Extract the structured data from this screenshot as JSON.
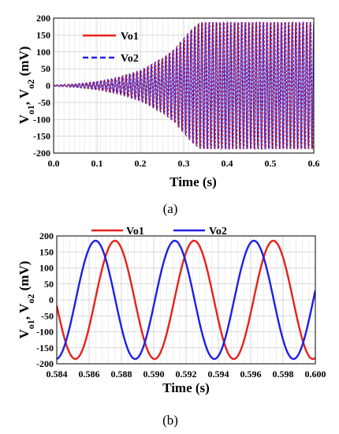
{
  "chart_data": [
    {
      "type": "line",
      "panel_label": "(a)",
      "xlabel": "Time (s)",
      "ylabel": "V",
      "ylabel_sub1": "o1",
      "ylabel_sep": ", V",
      "ylabel_sub2": "o2",
      "ylabel_unit": " (mV)",
      "xlim": [
        0.0,
        0.6
      ],
      "ylim": [
        -200,
        200
      ],
      "xticks": [
        0.0,
        0.1,
        0.2,
        0.3,
        0.4,
        0.5,
        0.6
      ],
      "xtick_labels": [
        "0.0",
        "0.1",
        "0.2",
        "0.3",
        "0.4",
        "0.5",
        "0.6"
      ],
      "yticks": [
        -200,
        -150,
        -100,
        -50,
        0,
        50,
        100,
        150,
        200
      ],
      "ytick_labels": [
        "-200",
        "-150",
        "-100",
        "-50",
        "0",
        "50",
        "100",
        "150",
        "200"
      ],
      "grid": true,
      "legend_placement": "top-left",
      "envelope": {
        "x": [
          0.0,
          0.05,
          0.1,
          0.15,
          0.2,
          0.25,
          0.28,
          0.3,
          0.32,
          0.335,
          0.34,
          0.6
        ],
        "amplitude": [
          2,
          5,
          12,
          25,
          45,
          80,
          110,
          140,
          170,
          185,
          188,
          188
        ]
      },
      "oscillation_period_s": 0.00833,
      "series": [
        {
          "name": "Vo1",
          "color": "#e8211b",
          "style": "solid"
        },
        {
          "name": "Vo2",
          "color": "#1f1fe8",
          "style": "dashed"
        }
      ]
    },
    {
      "type": "line",
      "panel_label": "(b)",
      "xlabel": "Time (s)",
      "ylabel": "V",
      "ylabel_sub1": "o1",
      "ylabel_sep": ", V",
      "ylabel_sub2": "o2",
      "ylabel_unit": " (mV)",
      "xlim": [
        0.584,
        0.6
      ],
      "ylim": [
        -200,
        200
      ],
      "xticks": [
        0.584,
        0.586,
        0.588,
        0.59,
        0.592,
        0.594,
        0.596,
        0.598,
        0.6
      ],
      "xtick_labels": [
        "0.584",
        "0.586",
        "0.588",
        "0.590",
        "0.592",
        "0.594",
        "0.596",
        "0.598",
        "0.600"
      ],
      "yticks": [
        -200,
        -150,
        -100,
        -50,
        0,
        50,
        100,
        150,
        200
      ],
      "ytick_labels": [
        "-200",
        "-150",
        "-100",
        "-50",
        "0",
        "50",
        "100",
        "150",
        "200"
      ],
      "grid": true,
      "legend_placement": "top",
      "amplitude": 185,
      "period_s": 0.0049,
      "series": [
        {
          "name": "Vo1",
          "color": "#e8211b",
          "style": "solid",
          "peak_at_s": 0.5876
        },
        {
          "name": "Vo2",
          "color": "#1f1fe8",
          "style": "solid",
          "peak_at_s": 0.5864
        }
      ]
    }
  ]
}
